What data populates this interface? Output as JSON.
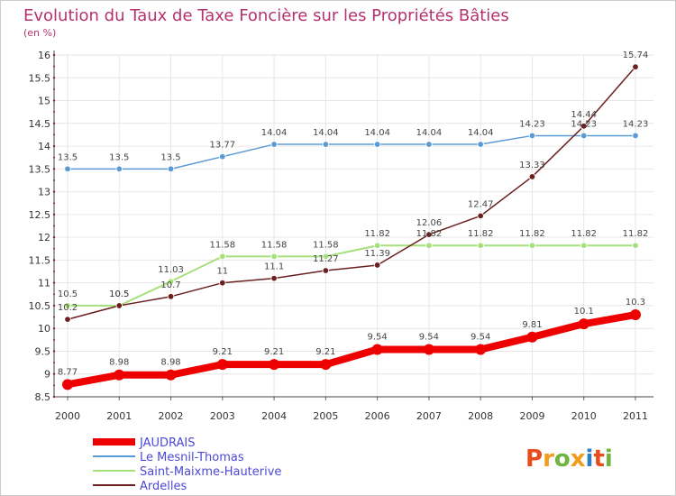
{
  "title": "Evolution du Taux de Taxe Foncière sur les Propriétés Bâties",
  "subtitle": "(en %)",
  "logo": {
    "text": "Proxiti",
    "colors": [
      "#e84c1e",
      "#f29b1d",
      "#6fb43f",
      "#f29b1d",
      "#2e7fc1",
      "#e84c1e",
      "#6fb43f"
    ]
  },
  "chart_data": {
    "type": "line",
    "x": [
      "2000",
      "2001",
      "2002",
      "2003",
      "2004",
      "2005",
      "2006",
      "2007",
      "2008",
      "2009",
      "2010",
      "2011"
    ],
    "ylim": [
      8.5,
      16
    ],
    "yticks": [
      "8.5",
      "9",
      "9.5",
      "10",
      "10.5",
      "11",
      "11.5",
      "12",
      "12.5",
      "13",
      "13.5",
      "14",
      "14.5",
      "15",
      "15.5",
      "16"
    ],
    "grid": true,
    "legend_position": "bottom-left",
    "series": [
      {
        "name": "JAUDRAIS",
        "color": "#ee0000",
        "width": 8,
        "values": [
          8.77,
          8.98,
          8.98,
          9.21,
          9.21,
          9.21,
          9.54,
          9.54,
          9.54,
          9.81,
          10.1,
          10.3
        ],
        "labels": [
          "8.77",
          "8.98",
          "8.98",
          "9.21",
          "9.21",
          "9.21",
          "9.54",
          "9.54",
          "9.54",
          "9.81",
          "10.1",
          "10.3"
        ]
      },
      {
        "name": "Le Mesnil-Thomas",
        "color": "#5b9bd5",
        "width": 1.5,
        "values": [
          13.5,
          13.5,
          13.5,
          13.77,
          14.04,
          14.04,
          14.04,
          14.04,
          14.04,
          14.23,
          14.23,
          14.23
        ],
        "labels": [
          "13.5",
          "13.5",
          "13.5",
          "13.77",
          "14.04",
          "14.04",
          "14.04",
          "14.04",
          "14.04",
          "14.23",
          "14.23",
          "14.23"
        ]
      },
      {
        "name": "Saint-Maixme-Hauterive",
        "color": "#a6e07a",
        "width": 2,
        "values": [
          10.5,
          10.5,
          11.03,
          11.58,
          11.58,
          11.58,
          11.82,
          11.82,
          11.82,
          11.82,
          11.82,
          11.82
        ],
        "labels": [
          "10.5",
          "10.5",
          "11.03",
          "11.58",
          "11.58",
          "11.58",
          "11.82",
          "11.82",
          "11.82",
          "11.82",
          "11.82",
          "11.82"
        ]
      },
      {
        "name": "Ardelles",
        "color": "#6b1f1f",
        "width": 1.5,
        "values": [
          10.2,
          10.5,
          10.7,
          11,
          11.1,
          11.27,
          11.39,
          12.06,
          12.47,
          13.33,
          14.44,
          15.74
        ],
        "labels": [
          "10.2",
          "10.5",
          "10.7",
          "11",
          "11.1",
          "11.27",
          "11.39",
          "12.06",
          "12.47",
          "13.33",
          "14.44",
          "15.74"
        ]
      }
    ]
  }
}
